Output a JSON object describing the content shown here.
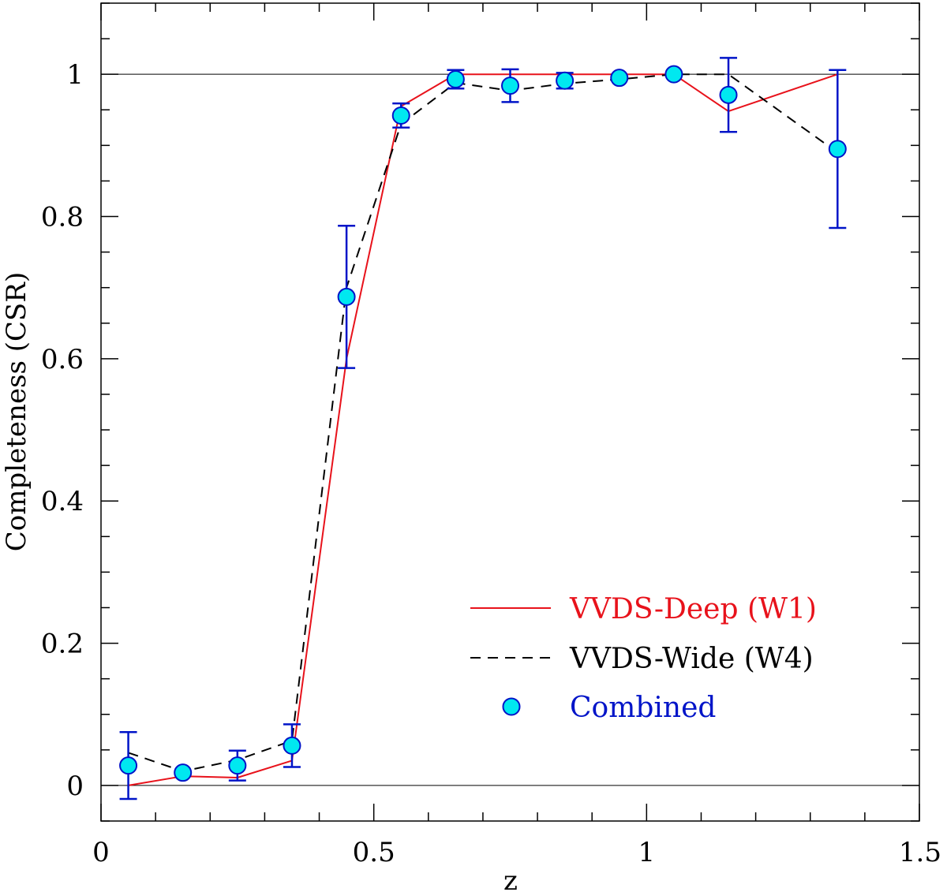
{
  "chart_data": {
    "type": "line",
    "title": "",
    "xlabel": "z",
    "ylabel": "Completeness (CSR)",
    "xlim": [
      0,
      1.5
    ],
    "ylim": [
      -0.05,
      1.1
    ],
    "xticks": [
      {
        "value": 0,
        "label": "0"
      },
      {
        "value": 0.5,
        "label": "0.5"
      },
      {
        "value": 1,
        "label": "1"
      },
      {
        "value": 1.5,
        "label": "1.5"
      }
    ],
    "yticks": [
      {
        "value": 0,
        "label": "0"
      },
      {
        "value": 0.2,
        "label": "0.2"
      },
      {
        "value": 0.4,
        "label": "0.4"
      },
      {
        "value": 0.6,
        "label": "0.6"
      },
      {
        "value": 0.8,
        "label": "0.8"
      },
      {
        "value": 1,
        "label": "1"
      }
    ],
    "x_minor_step": 0.1,
    "y_minor_step": 0.05,
    "reference_lines": [
      0,
      1
    ],
    "legend_position": "bottom-right",
    "series": [
      {
        "name": "VVDS-Deep (W1)",
        "style": "solid",
        "color": "#e8121b",
        "x": [
          0.05,
          0.15,
          0.25,
          0.35,
          0.45,
          0.55,
          0.65,
          0.75,
          0.85,
          0.95,
          1.05,
          1.15,
          1.35
        ],
        "y": [
          0.0,
          0.013,
          0.011,
          0.035,
          0.6,
          0.955,
          1.0,
          1.0,
          1.0,
          1.0,
          1.0,
          0.948,
          1.0
        ]
      },
      {
        "name": "VVDS-Wide (W4)",
        "style": "dashed",
        "color": "#000000",
        "x": [
          0.05,
          0.15,
          0.25,
          0.35,
          0.45,
          0.55,
          0.65,
          0.75,
          0.85,
          0.95,
          1.05,
          1.15,
          1.35
        ],
        "y": [
          0.046,
          0.02,
          0.036,
          0.063,
          0.7,
          0.93,
          0.988,
          0.977,
          0.987,
          0.993,
          1.0,
          1.0,
          0.89
        ]
      },
      {
        "name": "Combined",
        "style": "markers",
        "color": "#0014c8",
        "marker_fill": "#00e8f0",
        "x": [
          0.05,
          0.15,
          0.25,
          0.35,
          0.45,
          0.55,
          0.65,
          0.75,
          0.85,
          0.95,
          1.05,
          1.15,
          1.35
        ],
        "y": [
          0.028,
          0.018,
          0.028,
          0.056,
          0.687,
          0.942,
          0.993,
          0.984,
          0.991,
          0.995,
          1.0,
          0.971,
          0.895
        ],
        "err_low": [
          0.047,
          0.0,
          0.021,
          0.03,
          0.1,
          0.017,
          0.013,
          0.023,
          0.011,
          0.0,
          0.0,
          0.052,
          0.111
        ],
        "err_high": [
          0.047,
          0.0,
          0.021,
          0.03,
          0.1,
          0.017,
          0.013,
          0.023,
          0.011,
          0.0,
          0.0,
          0.052,
          0.111
        ]
      }
    ]
  }
}
